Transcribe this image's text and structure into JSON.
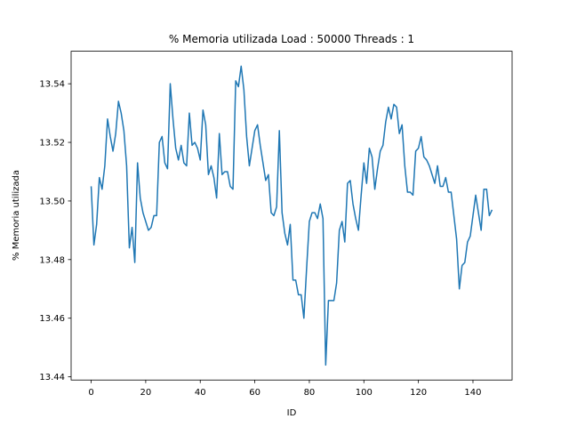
{
  "chart_data": {
    "type": "line",
    "title": "% Memoria utilizada Load : 50000 Threads : 1",
    "x_label": "ID",
    "y_label": "% Memoria utilizada",
    "x": [
      0,
      1,
      2,
      3,
      4,
      5,
      6,
      7,
      8,
      9,
      10,
      11,
      12,
      13,
      14,
      15,
      16,
      17,
      18,
      19,
      20,
      21,
      22,
      23,
      24,
      25,
      26,
      27,
      28,
      29,
      30,
      31,
      32,
      33,
      34,
      35,
      36,
      37,
      38,
      39,
      40,
      41,
      42,
      43,
      44,
      45,
      46,
      47,
      48,
      49,
      50,
      51,
      52,
      53,
      54,
      55,
      56,
      57,
      58,
      59,
      60,
      61,
      62,
      63,
      64,
      65,
      66,
      67,
      68,
      69,
      70,
      71,
      72,
      73,
      74,
      75,
      76,
      77,
      78,
      79,
      80,
      81,
      82,
      83,
      84,
      85,
      86,
      87,
      88,
      89,
      90,
      91,
      92,
      93,
      94,
      95,
      96,
      97,
      98,
      99,
      100,
      101,
      102,
      103,
      104,
      105,
      106,
      107,
      108,
      109,
      110,
      111,
      112,
      113,
      114,
      115,
      116,
      117,
      118,
      119,
      120,
      121,
      122,
      123,
      124,
      125,
      126,
      127,
      128,
      129,
      130,
      131,
      132,
      133,
      134,
      135,
      136,
      137,
      138,
      139,
      140,
      141,
      142,
      143,
      144,
      145,
      146,
      147
    ],
    "series": [
      {
        "color": "#1f77b4",
        "values": [
          13.505,
          13.485,
          13.492,
          13.508,
          13.504,
          13.512,
          13.528,
          13.522,
          13.517,
          13.523,
          13.534,
          13.53,
          13.524,
          13.512,
          13.484,
          13.491,
          13.479,
          13.513,
          13.501,
          13.496,
          13.493,
          13.49,
          13.491,
          13.495,
          13.495,
          13.52,
          13.522,
          13.513,
          13.511,
          13.54,
          13.528,
          13.518,
          13.514,
          13.519,
          13.513,
          13.512,
          13.53,
          13.519,
          13.52,
          13.518,
          13.514,
          13.531,
          13.526,
          13.509,
          13.512,
          13.508,
          13.501,
          13.523,
          13.509,
          13.51,
          13.51,
          13.505,
          13.504,
          13.541,
          13.539,
          13.546,
          13.538,
          13.522,
          13.512,
          13.518,
          13.524,
          13.526,
          13.519,
          13.513,
          13.507,
          13.509,
          13.496,
          13.495,
          13.498,
          13.524,
          13.496,
          13.489,
          13.485,
          13.492,
          13.473,
          13.473,
          13.468,
          13.468,
          13.46,
          13.477,
          13.493,
          13.496,
          13.496,
          13.494,
          13.499,
          13.494,
          13.444,
          13.466,
          13.466,
          13.466,
          13.472,
          13.49,
          13.493,
          13.486,
          13.506,
          13.507,
          13.499,
          13.494,
          13.49,
          13.502,
          13.513,
          13.506,
          13.518,
          13.515,
          13.504,
          13.511,
          13.517,
          13.519,
          13.527,
          13.532,
          13.528,
          13.533,
          13.532,
          13.523,
          13.526,
          13.512,
          13.503,
          13.503,
          13.502,
          13.517,
          13.518,
          13.522,
          13.515,
          13.514,
          13.512,
          13.509,
          13.506,
          13.512,
          13.505,
          13.505,
          13.508,
          13.503,
          13.503,
          13.495,
          13.487,
          13.47,
          13.478,
          13.479,
          13.486,
          13.488,
          13.495,
          13.502,
          13.496,
          13.49,
          13.504,
          13.504,
          13.495,
          13.497
        ]
      }
    ],
    "xlim": [
      -7.35,
      154.35
    ],
    "xticks": [
      0,
      20,
      40,
      60,
      80,
      100,
      120,
      140
    ],
    "ylim": [
      13.4389,
      13.5511
    ],
    "yticks": [
      13.44,
      13.46,
      13.48,
      {
        "value": 13.5,
        "label": "13.50"
      },
      13.52,
      13.54
    ]
  }
}
